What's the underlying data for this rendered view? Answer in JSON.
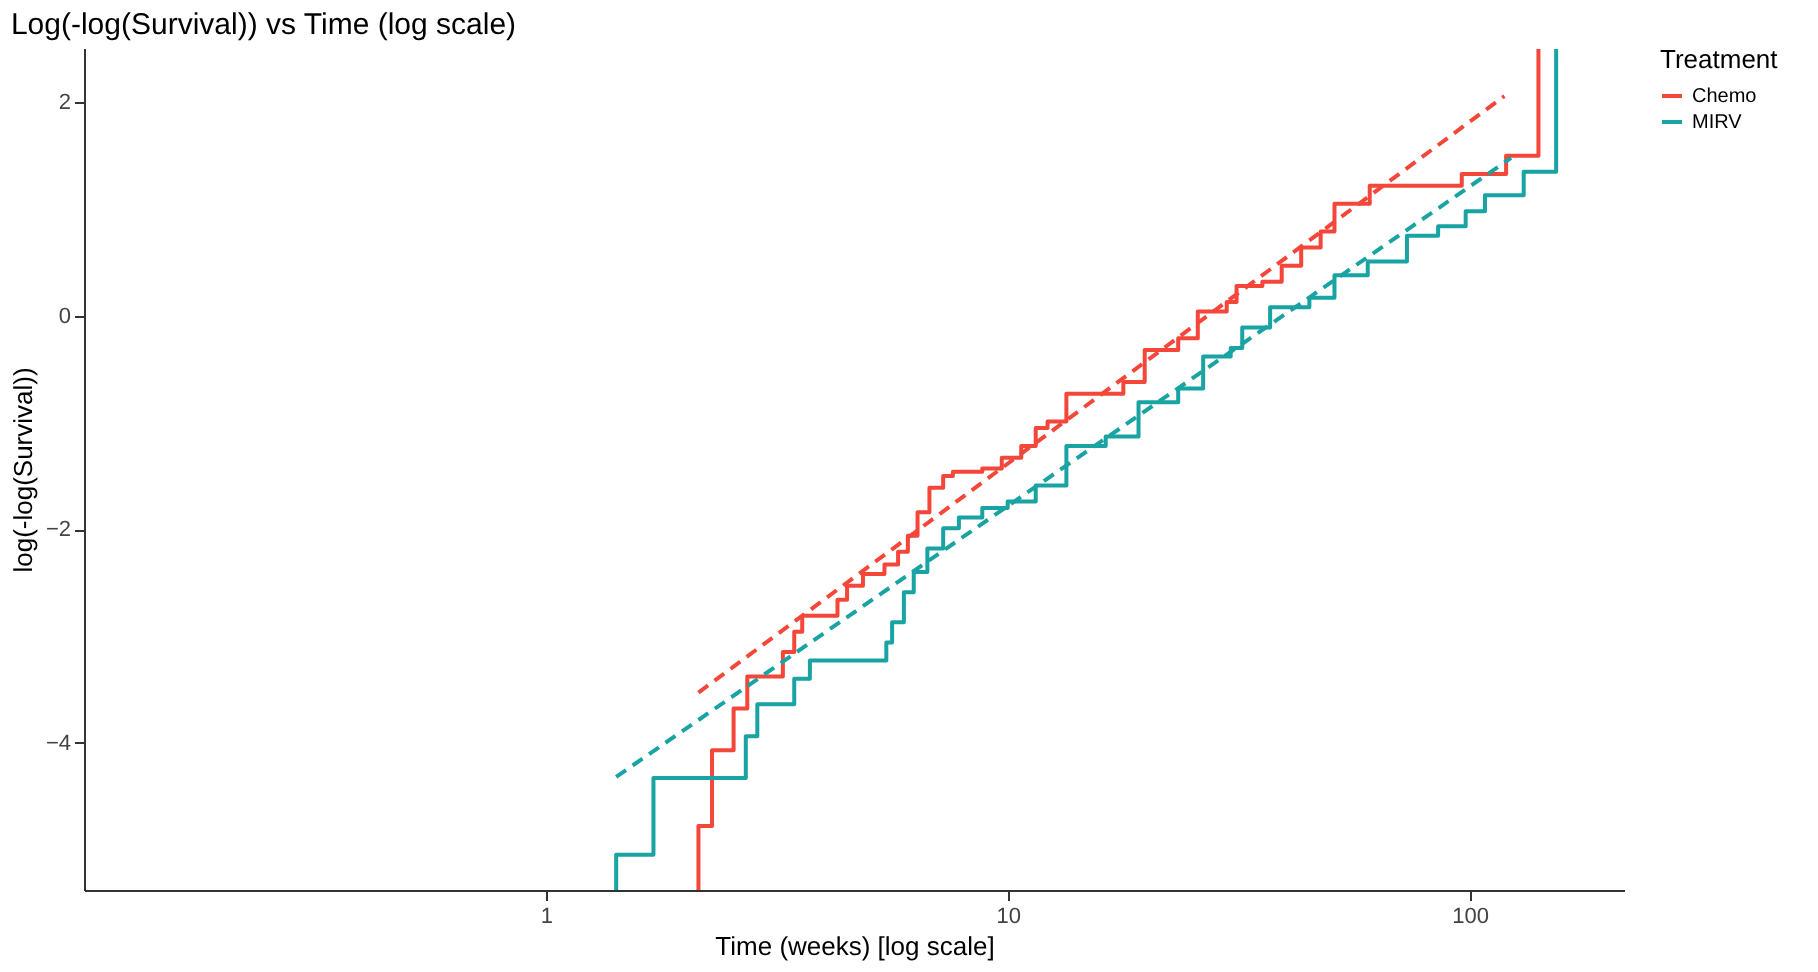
{
  "chart_data": {
    "type": "step",
    "title": "Log(-log(Survival)) vs Time (log scale)",
    "xlabel": "Time (weeks) [log scale]",
    "ylabel": "log(-log(Survival))",
    "legend_title": "Treatment",
    "log": "x",
    "xlim": [
      0.1,
      216
    ],
    "xticks": [
      1,
      10,
      100
    ],
    "ylim": [
      -5.38,
      2.51
    ],
    "yticks": [
      -4,
      -2,
      0,
      2
    ],
    "grid": false,
    "legend": "right",
    "series": [
      {
        "name": "Chemo",
        "color": "#f4473a",
        "line_style": "solid",
        "x": [
          2.14,
          2.14,
          2.29,
          2.55,
          2.73,
          3.26,
          3.45,
          3.59,
          4.28,
          4.49,
          4.86,
          5.41,
          5.79,
          6.08,
          6.38,
          6.77,
          7.25,
          7.61,
          8.81,
          9.71,
          10.7,
          11.5,
          12.2,
          13.4,
          17.8,
          19.8,
          23.4,
          25.8,
          29.8,
          31.3,
          35.6,
          39.2,
          43.2,
          47.6,
          51.0,
          60.8,
          96.2,
          120,
          141
        ],
        "values": [
          -5.38,
          -4.78,
          -4.07,
          -3.68,
          -3.38,
          -3.15,
          -2.96,
          -2.81,
          -2.66,
          -2.53,
          -2.42,
          -2.33,
          -2.21,
          -2.06,
          -1.84,
          -1.61,
          -1.5,
          -1.46,
          -1.43,
          -1.33,
          -1.22,
          -1.05,
          -0.99,
          -0.73,
          -0.62,
          -0.32,
          -0.21,
          0.04,
          0.13,
          0.28,
          0.32,
          0.47,
          0.64,
          0.79,
          1.05,
          1.22,
          1.33,
          1.5,
          2.5
        ]
      },
      {
        "name": "MIRV",
        "color": "#1aa3a3",
        "line_style": "solid",
        "x": [
          1.42,
          1.42,
          1.71,
          2.71,
          2.87,
          3.45,
          3.73,
          5.46,
          5.62,
          5.96,
          6.26,
          6.7,
          7.25,
          7.84,
          8.81,
          10,
          11.5,
          13.4,
          16.3,
          19.2,
          23.4,
          26.5,
          30.4,
          32.2,
          37.0,
          45.0,
          51.0,
          60.2,
          73.2,
          85.5,
          98.1,
          108,
          131,
          154
        ],
        "values": [
          -5.38,
          -5.05,
          -4.33,
          -3.94,
          -3.64,
          -3.4,
          -3.23,
          -3.06,
          -2.87,
          -2.59,
          -2.4,
          -2.18,
          -1.99,
          -1.89,
          -1.8,
          -1.74,
          -1.59,
          -1.22,
          -1.13,
          -0.81,
          -0.68,
          -0.38,
          -0.3,
          -0.11,
          0.08,
          0.17,
          0.38,
          0.51,
          0.75,
          0.84,
          0.98,
          1.13,
          1.35,
          2.5
        ]
      },
      {
        "type": "line",
        "color": "#f4473a",
        "line_style": "dashed",
        "x": [
          2.14,
          119
        ],
        "values": [
          -3.53,
          2.06
        ]
      },
      {
        "type": "line",
        "color": "#1aa3a3",
        "line_style": "dashed",
        "x": [
          1.42,
          123
        ],
        "values": [
          -4.32,
          1.48
        ]
      }
    ]
  }
}
